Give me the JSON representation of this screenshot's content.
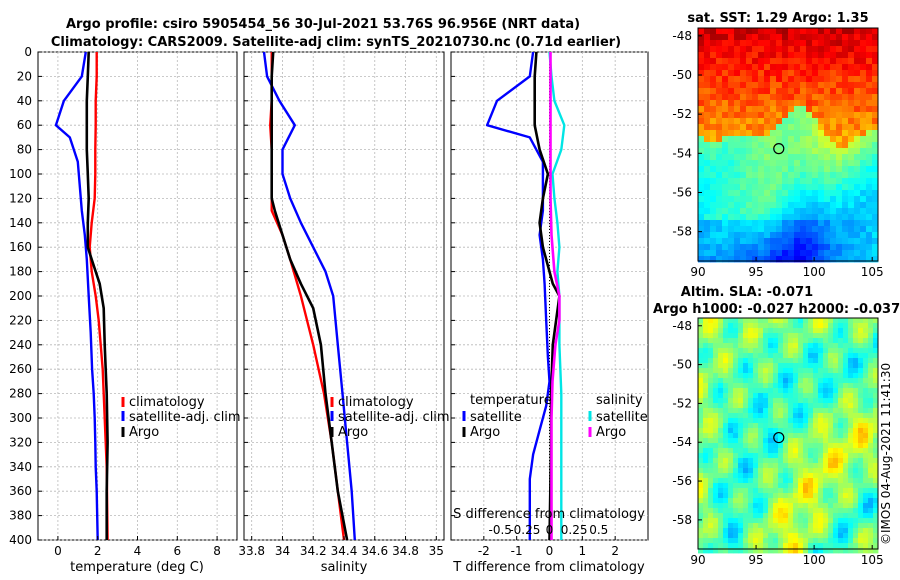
{
  "header": {
    "title_line1": "Argo profile: csiro 5905454_56 30-Jul-2021 53.76S 96.956E (NRT data)",
    "title_line2": "Climatology: CARS2009. Satellite-adj clim: synTS_20210730.nc (0.71d earlier)"
  },
  "colors": {
    "climatology": "#ff0000",
    "satellite": "#0000ff",
    "argo": "#000000",
    "sal_satellite": "#00e5e5",
    "sal_argo": "#ff00ff"
  },
  "chart_data": [
    {
      "type": "line",
      "panel": "temperature",
      "xlabel": "temperature (deg C)",
      "ylabel": "",
      "xlim": [
        -1,
        9
      ],
      "ylim": [
        400,
        0
      ],
      "xticks": [
        "0",
        "2",
        "4",
        "6",
        "8"
      ],
      "yticks": [
        "0",
        "20",
        "40",
        "60",
        "80",
        "100",
        "120",
        "140",
        "160",
        "180",
        "200",
        "220",
        "240",
        "260",
        "280",
        "300",
        "320",
        "340",
        "360",
        "380",
        "400"
      ],
      "legend_position": "middle-right",
      "series": [
        {
          "name": "climatology",
          "color": "#ff0000",
          "x": [
            1.95,
            1.95,
            1.9,
            1.9,
            1.88,
            1.88,
            1.85,
            1.7,
            1.6,
            1.7,
            1.9,
            2.05,
            2.15,
            2.25,
            2.3,
            2.35,
            2.4,
            2.45,
            2.5
          ],
          "depth": [
            0,
            20,
            40,
            60,
            80,
            100,
            120,
            140,
            160,
            180,
            200,
            220,
            240,
            260,
            280,
            300,
            320,
            340,
            400
          ]
        },
        {
          "name": "satellite-adj. clim",
          "color": "#0000ff",
          "x": [
            1.4,
            1.2,
            0.3,
            -0.1,
            0.6,
            1.0,
            1.1,
            1.2,
            1.35,
            1.45,
            1.55,
            1.65,
            1.72,
            1.8,
            1.85,
            1.88,
            1.9,
            1.95,
            2.0
          ],
          "depth": [
            0,
            20,
            40,
            60,
            70,
            90,
            110,
            130,
            150,
            170,
            200,
            230,
            260,
            280,
            300,
            320,
            340,
            360,
            400
          ]
        },
        {
          "name": "Argo",
          "color": "#000000",
          "x": [
            1.55,
            1.5,
            1.45,
            1.45,
            1.45,
            1.5,
            1.55,
            1.5,
            1.5,
            1.7,
            1.9,
            2.1,
            2.2,
            2.3,
            2.35,
            2.45,
            2.5,
            2.45,
            2.45
          ],
          "depth": [
            0,
            20,
            40,
            60,
            80,
            100,
            120,
            140,
            160,
            170,
            180,
            190,
            200,
            210,
            240,
            280,
            320,
            360,
            400
          ]
        }
      ]
    },
    {
      "type": "line",
      "panel": "salinity",
      "xlabel": "salinity",
      "xlim": [
        33.75,
        35.05
      ],
      "ylim": [
        400,
        0
      ],
      "xticks": [
        "33.8",
        "34",
        "34.2",
        "34.4",
        "34.6",
        "34.8",
        "35"
      ],
      "legend_position": "middle-right",
      "series": [
        {
          "name": "climatology",
          "color": "#ff0000",
          "x": [
            33.93,
            33.93,
            33.93,
            33.92,
            33.93,
            33.93,
            33.93,
            33.93,
            34.0,
            34.05,
            34.12,
            34.2,
            34.27,
            34.32,
            34.35,
            34.38,
            34.4
          ],
          "depth": [
            0,
            20,
            40,
            60,
            80,
            100,
            120,
            130,
            150,
            170,
            200,
            240,
            280,
            320,
            350,
            380,
            400
          ]
        },
        {
          "name": "satellite-adj. clim",
          "color": "#0000ff",
          "x": [
            33.88,
            33.9,
            33.98,
            34.08,
            34.0,
            34.0,
            34.05,
            34.12,
            34.2,
            34.28,
            34.33,
            34.36,
            34.39,
            34.42,
            34.45,
            34.47
          ],
          "depth": [
            0,
            20,
            40,
            60,
            80,
            100,
            120,
            140,
            160,
            180,
            200,
            240,
            280,
            320,
            360,
            400
          ]
        },
        {
          "name": "Argo",
          "color": "#000000",
          "x": [
            33.94,
            33.93,
            33.93,
            33.93,
            33.93,
            33.93,
            33.93,
            33.95,
            34.0,
            34.05,
            34.12,
            34.2,
            34.25,
            34.28,
            34.32,
            34.36,
            34.42
          ],
          "depth": [
            0,
            20,
            40,
            60,
            80,
            100,
            120,
            130,
            150,
            170,
            190,
            210,
            240,
            280,
            320,
            360,
            400
          ]
        }
      ]
    },
    {
      "type": "line",
      "panel": "difference",
      "xlabel": "T difference from climatology",
      "xlabel_top": "S difference from climatology",
      "xlim": [
        -3,
        3
      ],
      "xlim_top": [
        -1.0,
        1.0
      ],
      "ylim": [
        400,
        0
      ],
      "xticks": [
        "-2",
        "-1",
        "0",
        "1",
        "2"
      ],
      "xticks_top": [
        "-0.5",
        "-0.25",
        "0",
        "0.25",
        "0.5"
      ],
      "legend_position": "middle",
      "legend_titles": [
        "temperature",
        "salinity"
      ],
      "series": [
        {
          "name": "satellite",
          "kind": "temperature",
          "color": "#0000ff",
          "x": [
            -0.5,
            -0.6,
            -1.6,
            -1.9,
            -0.6,
            -0.2,
            -0.2,
            -0.2,
            -0.3,
            -0.2,
            -0.15,
            -0.1,
            -0.05,
            0.0,
            -0.1,
            -0.3,
            -0.5,
            -0.6,
            -0.6,
            -0.6
          ],
          "depth": [
            0,
            20,
            40,
            60,
            70,
            90,
            110,
            130,
            150,
            170,
            190,
            220,
            250,
            270,
            290,
            310,
            330,
            350,
            380,
            400
          ]
        },
        {
          "name": "Argo",
          "kind": "temperature",
          "color": "#000000",
          "x": [
            -0.4,
            -0.45,
            -0.45,
            -0.45,
            -0.3,
            -0.05,
            -0.2,
            -0.3,
            -0.2,
            0.0,
            0.1,
            0.3,
            0.2,
            0.1,
            0.05,
            0.05,
            0.0
          ],
          "depth": [
            0,
            20,
            40,
            60,
            80,
            100,
            120,
            140,
            160,
            180,
            190,
            200,
            220,
            240,
            280,
            320,
            400
          ]
        },
        {
          "name": "satellite",
          "kind": "salinity",
          "color": "#00e5e5",
          "x": [
            0.0,
            0.02,
            0.05,
            0.15,
            0.12,
            0.03,
            0.05,
            0.08,
            0.1,
            0.08,
            0.1,
            0.1,
            0.12,
            0.12,
            0.12,
            0.12
          ],
          "depth": [
            0,
            20,
            40,
            60,
            80,
            100,
            120,
            140,
            160,
            180,
            200,
            240,
            280,
            320,
            360,
            400
          ]
        },
        {
          "name": "Argo",
          "kind": "salinity",
          "color": "#ff00ff",
          "x": [
            0.01,
            0.01,
            0.01,
            0.01,
            0.01,
            0.01,
            0.01,
            0.02,
            0.05,
            0.1,
            0.1,
            0.06,
            0.03,
            0.02,
            0.02,
            0.02
          ],
          "depth": [
            0,
            20,
            40,
            60,
            80,
            100,
            120,
            150,
            180,
            200,
            220,
            240,
            270,
            300,
            350,
            400
          ]
        }
      ]
    },
    {
      "type": "heatmap",
      "panel": "sst_map",
      "title": "sat. SST: 1.29 Argo: 1.35",
      "xticks": [
        "90",
        "95",
        "100",
        "105"
      ],
      "yticks": [
        "-48",
        "-50",
        "-52",
        "-54",
        "-56",
        "-58"
      ],
      "xlim": [
        90,
        105.5
      ],
      "ylim": [
        -59.5,
        -47.6
      ],
      "marker": {
        "lon": 96.956,
        "lat": -53.76
      }
    },
    {
      "type": "heatmap",
      "panel": "sla_map",
      "title": "Altim. SLA: -0.071",
      "subtitle": "Argo h1000: -0.027 h2000: -0.037",
      "xticks": [
        "90",
        "95",
        "100",
        "105"
      ],
      "yticks": [
        "-48",
        "-50",
        "-52",
        "-54",
        "-56",
        "-58"
      ],
      "xlim": [
        90,
        105.5
      ],
      "ylim": [
        -59.5,
        -47.6
      ],
      "marker": {
        "lon": 96.956,
        "lat": -53.76
      }
    }
  ],
  "legend": {
    "climatology": "climatology",
    "satellite_adj": "satellite-adj. clim",
    "argo": "Argo",
    "temperature_title": "temperature",
    "salinity_title": "salinity",
    "satellite": "satellite"
  },
  "credit": "©IMOS 04-Aug-2021 11:41:30"
}
